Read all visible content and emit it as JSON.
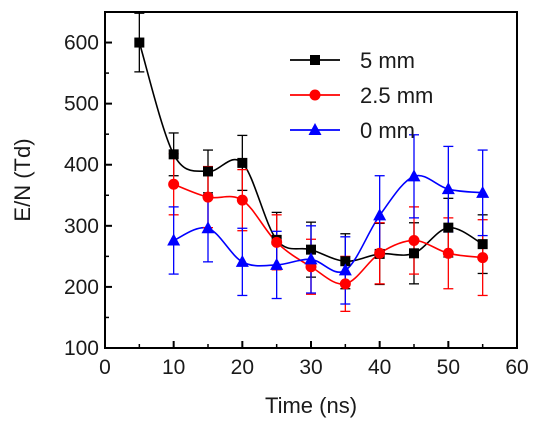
{
  "chart_data": {
    "type": "line",
    "title": "",
    "xlabel": "Time (ns)",
    "ylabel": "E/N (Td)",
    "xlim": [
      0,
      60
    ],
    "ylim": [
      100,
      650
    ],
    "xticks": [
      0,
      10,
      20,
      30,
      40,
      50,
      60
    ],
    "yticks": [
      100,
      200,
      300,
      400,
      500,
      600
    ],
    "grid": false,
    "legend_position": "top-right",
    "series": [
      {
        "name": "5 mm",
        "color": "#000000",
        "marker": "square",
        "x": [
          5,
          10,
          15,
          20,
          25,
          30,
          35,
          40,
          45,
          50,
          55
        ],
        "y": [
          600,
          417,
          389,
          403,
          277,
          261,
          242,
          254,
          255,
          297,
          270
        ],
        "err": [
          48,
          35,
          35,
          45,
          45,
          45,
          45,
          50,
          50,
          48,
          48
        ]
      },
      {
        "name": "2.5 mm",
        "color": "#ff0000",
        "marker": "circle",
        "x": [
          10,
          15,
          20,
          25,
          30,
          35,
          40,
          45,
          50,
          55
        ],
        "y": [
          368,
          347,
          342,
          273,
          233,
          205,
          255,
          276,
          255,
          248
        ],
        "err": [
          50,
          50,
          50,
          45,
          45,
          45,
          50,
          55,
          58,
          62
        ]
      },
      {
        "name": "0 mm",
        "color": "#0000ff",
        "marker": "triangle",
        "x": [
          10,
          15,
          20,
          25,
          30,
          35,
          40,
          45,
          50,
          55
        ],
        "y": [
          276,
          296,
          241,
          236,
          245,
          227,
          317,
          381,
          360,
          354
        ],
        "err": [
          55,
          55,
          55,
          55,
          55,
          55,
          65,
          68,
          70,
          70
        ]
      }
    ]
  }
}
